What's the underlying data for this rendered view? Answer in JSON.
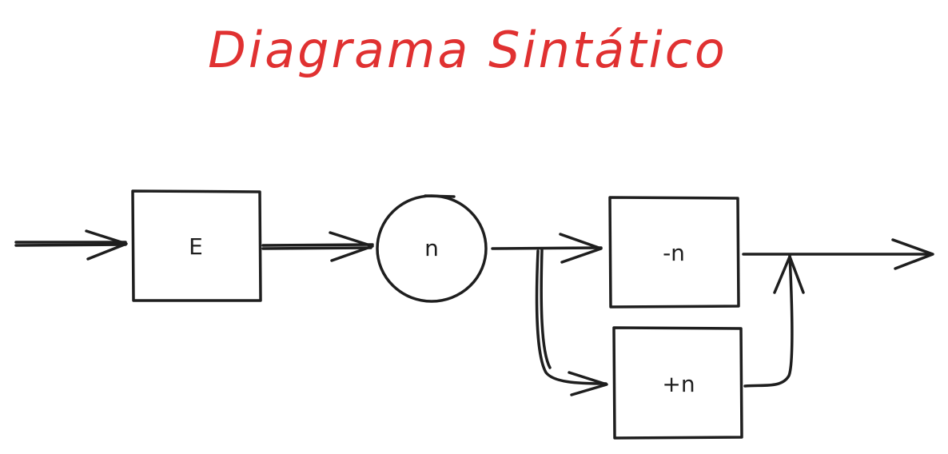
{
  "title": "Diagrama Sintático",
  "nodes": {
    "e": "E",
    "n": "n",
    "minus_n": "-n",
    "plus_n": "+n"
  },
  "colors": {
    "title": "#e03131",
    "stroke": "#1e1e1e",
    "background": "#ffffff"
  }
}
